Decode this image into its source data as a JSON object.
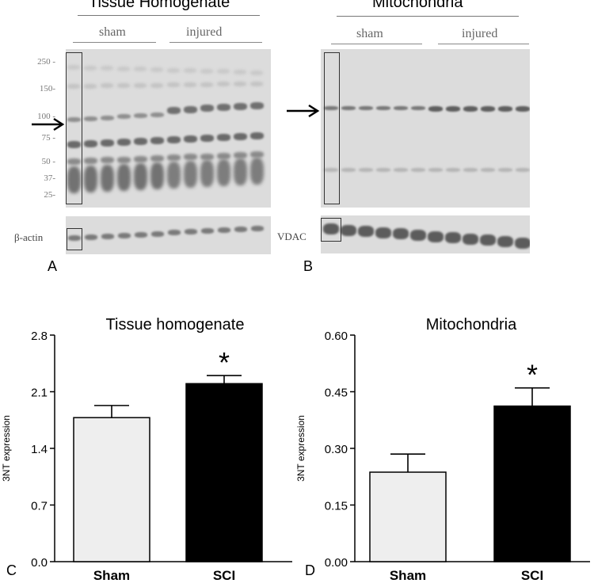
{
  "blots": {
    "left": {
      "title": "Tissue Homogenate",
      "groups": [
        "sham",
        "injured"
      ],
      "mw_markers": [
        "250 -",
        "150-",
        "100 -",
        "75 -",
        "50 -",
        "37-",
        "25-"
      ],
      "loading_label": "β-actin",
      "panel_letter": "A"
    },
    "right": {
      "title": "Mitochondria",
      "groups": [
        "sham",
        "injured"
      ],
      "loading_label": "VDAC",
      "panel_letter": "B"
    }
  },
  "chart_data": [
    {
      "type": "bar",
      "panel_letter": "C",
      "title": "Tissue homogenate",
      "ylabel": "3NT expression",
      "xlabel": "",
      "categories": [
        "Sham",
        "SCI"
      ],
      "values": [
        1.78,
        2.2
      ],
      "errors": [
        0.15,
        0.1
      ],
      "bar_colors": [
        "#eeeeee",
        "#000000"
      ],
      "significance": [
        "",
        "*"
      ],
      "ylim": [
        0.0,
        2.8
      ],
      "yticks": [
        "0.0",
        "0.7",
        "1.4",
        "2.1",
        "2.8"
      ],
      "grid": false
    },
    {
      "type": "bar",
      "panel_letter": "D",
      "title": "Mitochondria",
      "ylabel": "3NT expression",
      "xlabel": "",
      "categories": [
        "Sham",
        "SCI"
      ],
      "values": [
        0.237,
        0.412
      ],
      "errors": [
        0.048,
        0.048
      ],
      "bar_colors": [
        "#eeeeee",
        "#000000"
      ],
      "significance": [
        "",
        "*"
      ],
      "ylim": [
        0.0,
        0.6
      ],
      "yticks": [
        "0.00",
        "0.15",
        "0.30",
        "0.45",
        "0.60"
      ],
      "grid": false
    }
  ]
}
